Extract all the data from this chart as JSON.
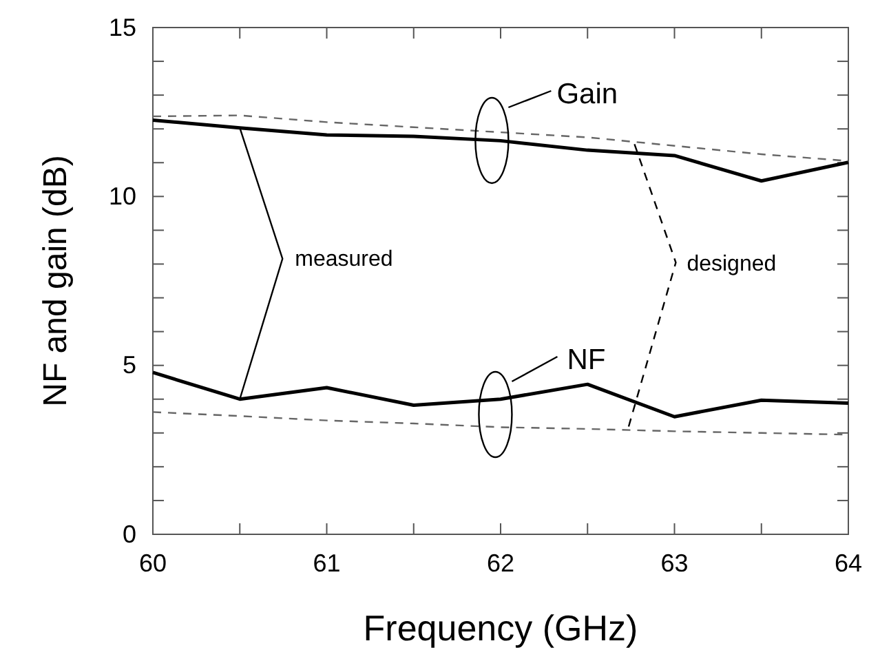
{
  "chart_data": {
    "type": "line",
    "xlabel": "Frequency (GHz)",
    "ylabel": "NF and gain (dB)",
    "x": [
      60,
      60.5,
      61,
      61.5,
      62,
      62.5,
      63,
      63.5,
      64
    ],
    "xlim": [
      60,
      64
    ],
    "ylim": [
      0,
      15
    ],
    "xticks": [
      60,
      {
        "value": 60.5,
        "label": null
      },
      61,
      {
        "value": 61.5,
        "label": null
      },
      62,
      {
        "value": 62.5,
        "label": null
      },
      63,
      {
        "value": 63.5,
        "label": null
      },
      64
    ],
    "yticks": [
      0,
      {
        "value": 1,
        "label": null
      },
      {
        "value": 2,
        "label": null
      },
      {
        "value": 3,
        "label": null
      },
      {
        "value": 4,
        "label": null
      },
      5,
      {
        "value": 6,
        "label": null
      },
      {
        "value": 7,
        "label": null
      },
      {
        "value": 8,
        "label": null
      },
      {
        "value": 9,
        "label": null
      },
      10,
      {
        "value": 11,
        "label": null
      },
      {
        "value": 12,
        "label": null
      },
      {
        "value": 13,
        "label": null
      },
      {
        "value": 14,
        "label": null
      },
      15
    ],
    "grid": false,
    "marker": "none",
    "series": [
      {
        "color": "#000000",
        "line_style": "solid",
        "values": [
          12.26,
          12.03,
          11.82,
          11.78,
          11.65,
          11.37,
          11.21,
          10.46,
          11.01
        ]
      },
      {
        "color": "#000000",
        "line_style": "solid",
        "values": [
          4.79,
          4.0,
          4.34,
          3.82,
          4.0,
          4.44,
          3.48,
          3.97,
          3.88
        ]
      },
      {
        "color": "#666666",
        "line_style": "dashed",
        "values": [
          12.37,
          12.4,
          12.2,
          12.05,
          11.9,
          11.75,
          11.5,
          11.25,
          11.05
        ]
      },
      {
        "color": "#666666",
        "line_style": "dashed",
        "values": [
          3.62,
          3.5,
          3.37,
          3.28,
          3.17,
          3.12,
          3.05,
          3.0,
          2.95
        ]
      }
    ],
    "annotations": [
      "Gain",
      "NF",
      "measured",
      "designed"
    ]
  }
}
